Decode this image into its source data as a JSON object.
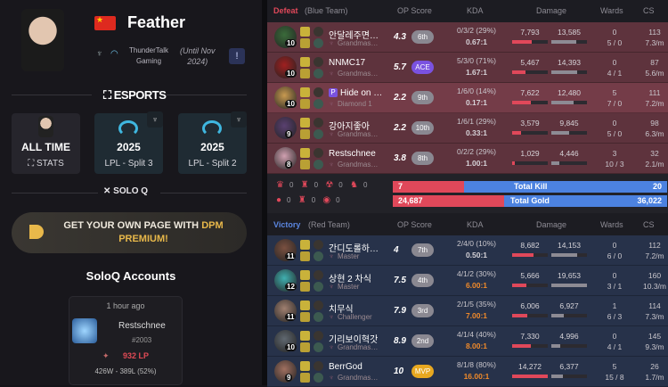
{
  "player": {
    "name": "Feather",
    "team": "ThunderTalk Gaming",
    "team_line1": "ThunderTalk",
    "team_line2": "Gaming",
    "until_line1": "(Until Nov",
    "until_line2": "2024)",
    "flag": "china-flag"
  },
  "esports_label": "ESPORTS",
  "cards": [
    {
      "title": "ALL TIME",
      "sub": "STATS"
    },
    {
      "title": "2025",
      "sub": "LPL - Split 3"
    },
    {
      "title": "2025",
      "sub": "LPL - Split 2"
    }
  ],
  "soloq_label": "SOLO Q",
  "promo": {
    "text": "GET YOUR OWN PAGE WITH ",
    "highlight1": "DPM",
    "highlight2": "PREMIUM!"
  },
  "accounts": {
    "title": "SoloQ Accounts",
    "items": [
      {
        "ago": "1 hour ago",
        "name": "Restschnee",
        "tag": "#2003",
        "lp": "932 LP",
        "record": "426W - 389L (52%)"
      }
    ]
  },
  "columns": {
    "op": "OP Score",
    "kda": "KDA",
    "damage": "Damage",
    "wards": "Wards",
    "cs": "CS"
  },
  "blue": {
    "result": "Defeat",
    "team": "(Blue Team)",
    "color": "#e0485a",
    "players": [
      {
        "name": "안달레주면…",
        "tier": "Grandmas…",
        "level": "10",
        "op": "4.3",
        "rank": "6th",
        "kda": "0/3/2 (29%)",
        "ratio": "0.67:1",
        "dealt": 7793,
        "dealt_s": "7,793",
        "taken": 13585,
        "taken_s": "13,585",
        "wards1": "0",
        "wards2": "5 / 0",
        "cs": "113",
        "csm": "7.3/m"
      },
      {
        "name": "NNMC17",
        "tier": "Grandmas…",
        "level": "10",
        "op": "5.7",
        "rank": "ACE",
        "kda": "5/3/0 (71%)",
        "ratio": "1.67:1",
        "dealt": 5467,
        "dealt_s": "5,467",
        "taken": 14393,
        "taken_s": "14,393",
        "wards1": "0",
        "wards2": "4 / 1",
        "cs": "87",
        "csm": "5.6/m"
      },
      {
        "name": "Hide on b…",
        "tier": "Diamond 1",
        "pro": "P",
        "level": "10",
        "op": "2.2",
        "rank": "9th",
        "kda": "1/6/0 (14%)",
        "ratio": "0.17:1",
        "dealt": 7622,
        "dealt_s": "7,622",
        "taken": 12480,
        "taken_s": "12,480",
        "wards1": "5",
        "wards2": "7 / 0",
        "cs": "111",
        "csm": "7.2/m",
        "highlight": true
      },
      {
        "name": "강아지좋아",
        "tier": "Grandmas…",
        "level": "9",
        "op": "2.2",
        "rank": "10th",
        "kda": "1/6/1 (29%)",
        "ratio": "0.33:1",
        "dealt": 3579,
        "dealt_s": "3,579",
        "taken": 9845,
        "taken_s": "9,845",
        "wards1": "0",
        "wards2": "5 / 0",
        "cs": "98",
        "csm": "6.3/m"
      },
      {
        "name": "Restschnee",
        "tier": "Grandmas…",
        "level": "8",
        "op": "3.8",
        "rank": "8th",
        "kda": "0/2/2 (29%)",
        "ratio": "1.00:1",
        "dealt": 1029,
        "dealt_s": "1,029",
        "taken": 4446,
        "taken_s": "4,446",
        "wards1": "3",
        "wards2": "10 / 3",
        "cs": "32",
        "csm": "2.1/m"
      }
    ]
  },
  "objectives": {
    "blue_row1": [
      "0",
      "0",
      "0",
      "0"
    ],
    "blue_row2": [
      "0",
      "0",
      "0"
    ]
  },
  "totals": {
    "kill_label": "Total Kill",
    "kill_blue": 7,
    "kill_red": 20,
    "gold_label": "Total Gold",
    "gold_blue": 24687,
    "gold_blue_s": "24,687",
    "gold_red": 36022,
    "gold_red_s": "36,022"
  },
  "red": {
    "result": "Victory",
    "team": "(Red Team)",
    "color": "#5b86e0",
    "players": [
      {
        "name": "간디도롤하…",
        "tier": "Master",
        "level": "11",
        "op": "4",
        "rank": "7th",
        "kda": "2/4/0 (10%)",
        "ratio": "0.50:1",
        "dealt": 8682,
        "dealt_s": "8,682",
        "taken": 14153,
        "taken_s": "14,153",
        "wards1": "0",
        "wards2": "6 / 0",
        "cs": "112",
        "csm": "7.2/m"
      },
      {
        "name": "상현 2 차식",
        "tier": "Master",
        "level": "12",
        "op": "7.5",
        "rank": "4th",
        "kda": "4/1/2 (30%)",
        "ratio": "6.00:1",
        "dealt": 5666,
        "dealt_s": "5,666",
        "taken": 19653,
        "taken_s": "19,653",
        "wards1": "0",
        "wards2": "3 / 1",
        "cs": "160",
        "csm": "10.3/m"
      },
      {
        "name": "치무식",
        "tier": "Challenger",
        "level": "11",
        "op": "7.9",
        "rank": "3rd",
        "kda": "2/1/5 (35%)",
        "ratio": "7.00:1",
        "dealt": 6006,
        "dealt_s": "6,006",
        "taken": 6927,
        "taken_s": "6,927",
        "wards1": "1",
        "wards2": "6 / 3",
        "cs": "114",
        "csm": "7.3/m"
      },
      {
        "name": "기리보이혁갓",
        "tier": "Grandmas…",
        "level": "10",
        "op": "8.9",
        "rank": "2nd",
        "kda": "4/1/4 (40%)",
        "ratio": "8.00:1",
        "dealt": 7330,
        "dealt_s": "7,330",
        "taken": 4996,
        "taken_s": "4,996",
        "wards1": "0",
        "wards2": "4 / 1",
        "cs": "145",
        "csm": "9.3/m"
      },
      {
        "name": "BerrGod",
        "tier": "Grandmas…",
        "level": "9",
        "op": "10",
        "rank": "MVP",
        "kda": "8/1/8 (80%)",
        "ratio": "16.00:1",
        "dealt": 14272,
        "dealt_s": "14,272",
        "taken": 6377,
        "taken_s": "6,377",
        "wards1": "5",
        "wards2": "15 / 8",
        "cs": "26",
        "csm": "1.7/m"
      }
    ]
  }
}
